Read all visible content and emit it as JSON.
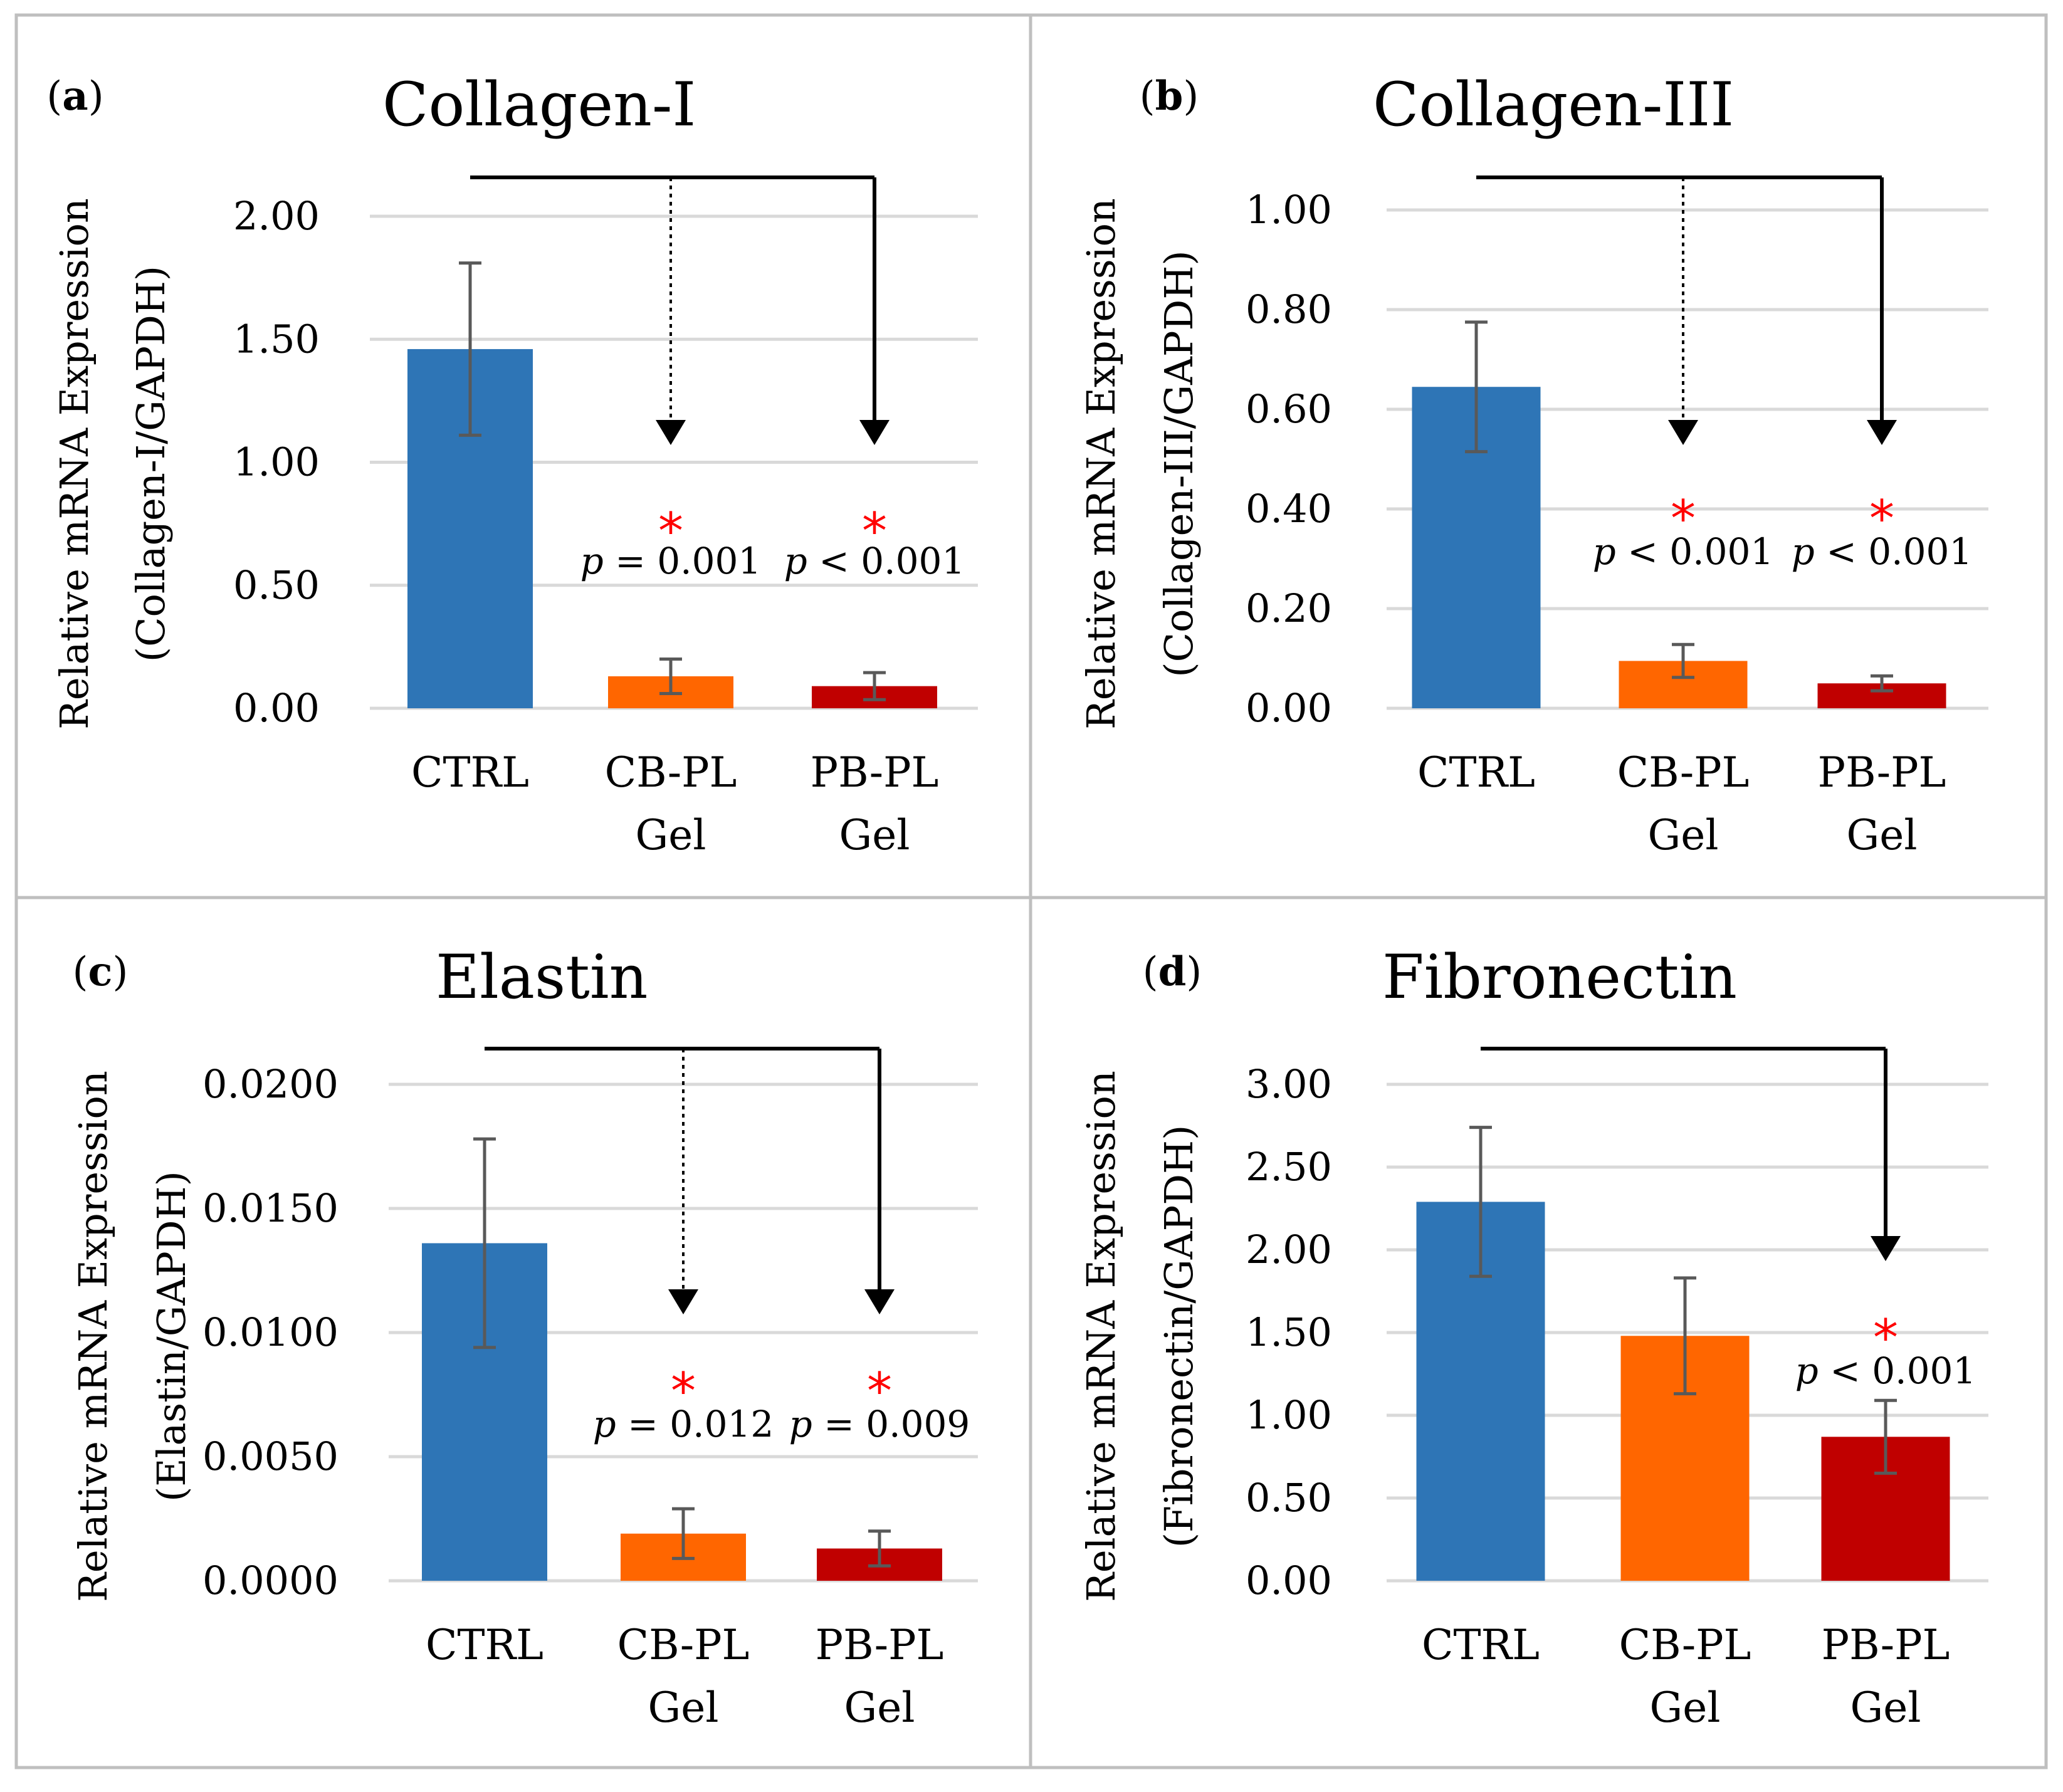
{
  "chart_data": [
    {
      "type": "bar",
      "panel": "(a)",
      "title": "Collagen-I",
      "ylabel_line1": "Relative mRNA Expression",
      "ylabel_line2": "(Collagen-I/GAPDH)",
      "categories": [
        [
          "CTRL"
        ],
        [
          "CB-PL",
          "Gel"
        ],
        [
          "PB-PL",
          "Gel"
        ]
      ],
      "values": [
        1.46,
        0.13,
        0.09
      ],
      "errors": [
        0.35,
        0.07,
        0.055
      ],
      "colors": [
        "#2e75b6",
        "#ff6600",
        "#c00000"
      ],
      "ylim": [
        0,
        2.0
      ],
      "yticks": [
        0,
        0.5,
        1.0,
        1.5,
        2.0
      ],
      "ytick_labels": [
        "0.00",
        "0.50",
        "1.00",
        "1.50",
        "2.00"
      ],
      "significance": [
        {
          "target": 1,
          "line": "dotted",
          "star": "*",
          "p_symbol": "p",
          "p_rest": " = 0.001"
        },
        {
          "target": 2,
          "line": "solid",
          "star": "*",
          "p_symbol": "p",
          "p_rest": " < 0.001"
        }
      ]
    },
    {
      "type": "bar",
      "panel": "(b)",
      "title": "Collagen-III",
      "ylabel_line1": "Relative mRNA Expression",
      "ylabel_line2": "(Collagen-III/GAPDH)",
      "categories": [
        [
          "CTRL"
        ],
        [
          "CB-PL",
          "Gel"
        ],
        [
          "PB-PL",
          "Gel"
        ]
      ],
      "values": [
        0.645,
        0.095,
        0.05
      ],
      "errors": [
        0.13,
        0.033,
        0.015
      ],
      "colors": [
        "#2e75b6",
        "#ff6600",
        "#c00000"
      ],
      "ylim": [
        0,
        1.0
      ],
      "yticks": [
        0,
        0.2,
        0.4,
        0.6,
        0.8,
        1.0
      ],
      "ytick_labels": [
        "0.00",
        "0.20",
        "0.40",
        "0.60",
        "0.80",
        "1.00"
      ],
      "significance": [
        {
          "target": 1,
          "line": "dotted",
          "star": "*",
          "p_symbol": "p",
          "p_rest": " < 0.001"
        },
        {
          "target": 2,
          "line": "solid",
          "star": "*",
          "p_symbol": "p",
          "p_rest": " < 0.001"
        }
      ]
    },
    {
      "type": "bar",
      "panel": "(c)",
      "title": "Elastin",
      "ylabel_line1": "Relative mRNA Expression",
      "ylabel_line2": "(Elastin/GAPDH)",
      "categories": [
        [
          "CTRL"
        ],
        [
          "CB-PL",
          "Gel"
        ],
        [
          "PB-PL",
          "Gel"
        ]
      ],
      "values": [
        0.0136,
        0.0019,
        0.0013
      ],
      "errors": [
        0.0042,
        0.001,
        0.0007
      ],
      "colors": [
        "#2e75b6",
        "#ff6600",
        "#c00000"
      ],
      "ylim": [
        0,
        0.02
      ],
      "yticks": [
        0,
        0.005,
        0.01,
        0.015,
        0.02
      ],
      "ytick_labels": [
        "0.0000",
        "0.0050",
        "0.0100",
        "0.0150",
        "0.0200"
      ],
      "significance": [
        {
          "target": 1,
          "line": "dotted",
          "star": "*",
          "p_symbol": "p",
          "p_rest": " = 0.012"
        },
        {
          "target": 2,
          "line": "solid",
          "star": "*",
          "p_symbol": "p",
          "p_rest": " = 0.009"
        }
      ]
    },
    {
      "type": "bar",
      "panel": "(d)",
      "title": "Fibronectin",
      "ylabel_line1": "Relative mRNA Expression",
      "ylabel_line2": "(Fibronectin/GAPDH)",
      "categories": [
        [
          "CTRL"
        ],
        [
          "CB-PL",
          "Gel"
        ],
        [
          "PB-PL",
          "Gel"
        ]
      ],
      "values": [
        2.29,
        1.48,
        0.87
      ],
      "errors": [
        0.45,
        0.35,
        0.22
      ],
      "colors": [
        "#2e75b6",
        "#ff6600",
        "#c00000"
      ],
      "ylim": [
        0,
        3.0
      ],
      "yticks": [
        0,
        0.5,
        1.0,
        1.5,
        2.0,
        2.5,
        3.0
      ],
      "ytick_labels": [
        "0.00",
        "0.50",
        "1.00",
        "1.50",
        "2.00",
        "2.50",
        "3.00"
      ],
      "significance": [
        {
          "target": 2,
          "line": "solid",
          "star": "*",
          "p_symbol": "p",
          "p_rest": " < 0.001"
        }
      ]
    }
  ]
}
